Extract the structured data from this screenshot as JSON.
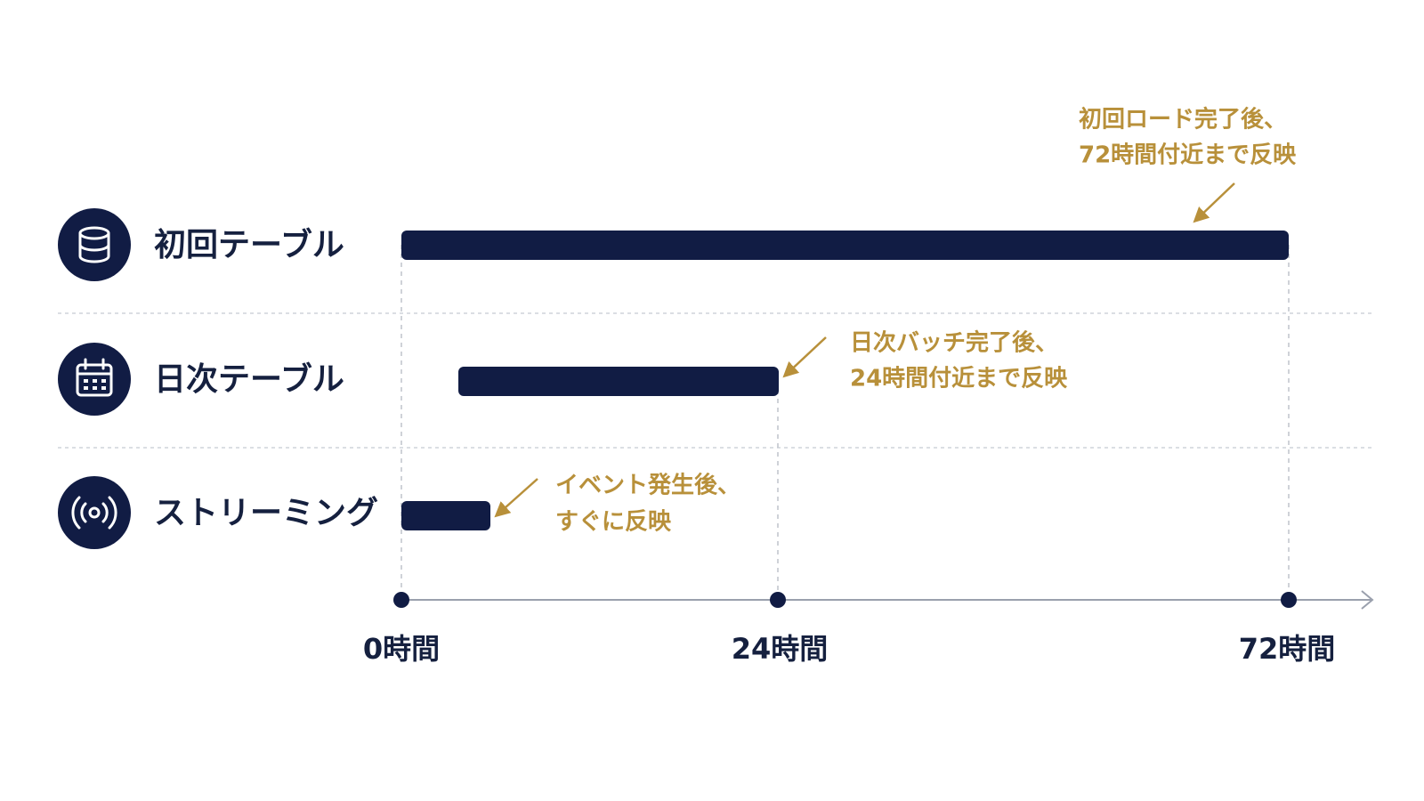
{
  "rows": [
    {
      "label": "初回テーブル",
      "note": [
        "初回ロード完了後、",
        "72時間付近まで反映"
      ]
    },
    {
      "label": "日次テーブル",
      "note": [
        "日次バッチ完了後、",
        "24時間付近まで反映"
      ]
    },
    {
      "label": "ストリーミング",
      "note": [
        "イベント発生後、",
        "すぐに反映"
      ]
    }
  ],
  "axis": {
    "labels": [
      "0時間",
      "24時間",
      "72時間"
    ]
  }
}
